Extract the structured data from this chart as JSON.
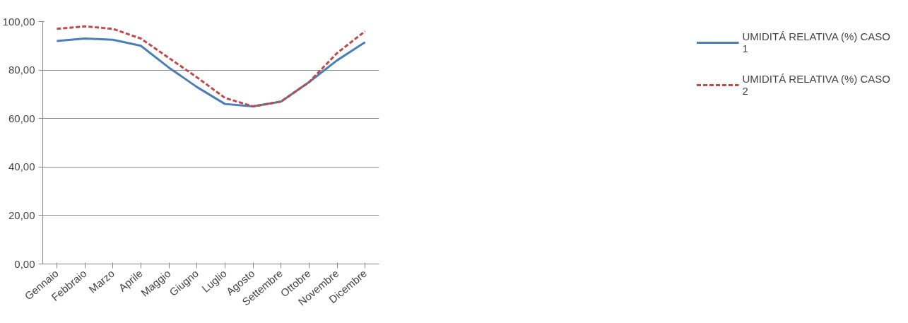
{
  "chart_data": {
    "type": "line",
    "categories": [
      "Gennaio",
      "Febbraio",
      "Marzo",
      "Aprile",
      "Maggio",
      "Giugno",
      "Luglio",
      "Agosto",
      "Settembre",
      "Ottobre",
      "Novembre",
      "Dicembre"
    ],
    "series": [
      {
        "name": "UMIDITÁ RELATIVA (%) CASO 1",
        "color": "#4a7ebb",
        "line_style": "solid",
        "values": [
          92,
          93,
          92.5,
          90,
          81,
          73,
          66,
          65,
          67,
          75,
          84,
          91.5
        ]
      },
      {
        "name": "UMIDITÁ RELATIVA (%) CASO 2",
        "color": "#be4b48",
        "line_style": "dashed",
        "values": [
          97,
          98,
          97,
          93,
          85,
          77,
          68.5,
          65,
          67,
          75,
          87,
          96
        ]
      }
    ],
    "ylim": [
      0,
      100
    ],
    "yticks": [
      {
        "value": 0,
        "label": "0,00"
      },
      {
        "value": 20,
        "label": "20,00"
      },
      {
        "value": 40,
        "label": "40,00"
      },
      {
        "value": 60,
        "label": "60,00"
      },
      {
        "value": 80,
        "label": "80,00"
      },
      {
        "value": 100,
        "label": "100,00"
      }
    ],
    "grid": "y",
    "legend": "right",
    "marker": "none"
  }
}
